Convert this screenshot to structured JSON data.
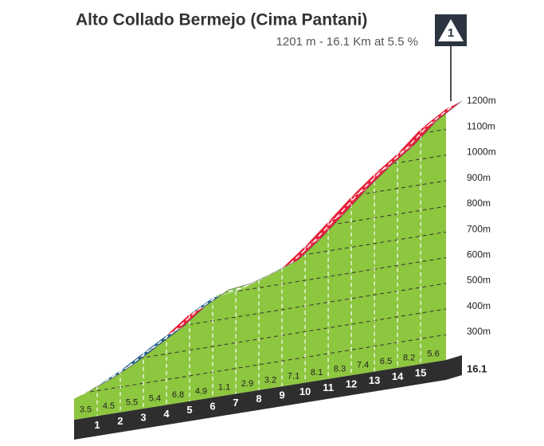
{
  "title": "Alto Collado Bermejo (Cima Pantani)",
  "subtitle": "1201 m - 16.1 Km at 5.5 %",
  "category": "1",
  "chart_data": {
    "type": "climb-profile",
    "x": [
      0,
      1,
      2,
      3,
      4,
      5,
      6,
      7,
      8,
      9,
      10,
      11,
      12,
      13,
      14,
      15,
      16.1
    ],
    "elevations": [
      305,
      340,
      385,
      440,
      494,
      562,
      611,
      622,
      651,
      683,
      754,
      835,
      918,
      992,
      1057,
      1139,
      1201
    ],
    "gradients": [
      3.5,
      4.5,
      5.5,
      5.4,
      6.8,
      4.9,
      1.1,
      2.9,
      3.2,
      7.1,
      8.1,
      8.3,
      7.4,
      6.5,
      8.2,
      5.6
    ],
    "gradient_colors": [
      "#7cc242",
      "#1f5f8b",
      "#1f5f8b",
      "#1f5f8b",
      "#e8203a",
      "#1f5f8b",
      "#7cc242",
      "#7cc242",
      "#7cc242",
      "#e8203a",
      "#e8203a",
      "#e8203a",
      "#e8203a",
      "#e8203a",
      "#e8203a",
      "#e8203a"
    ],
    "terrain_color": "#8dc63f",
    "xlim": [
      0,
      16.1
    ],
    "xticks": [
      1,
      2,
      3,
      4,
      5,
      6,
      7,
      8,
      9,
      10,
      11,
      12,
      13,
      14,
      15,
      16.1
    ],
    "ylim": [
      300,
      1200
    ],
    "yticks": [
      {
        "value": 1200,
        "label": "1200m"
      },
      {
        "value": 1100,
        "label": "1100m"
      },
      {
        "value": 1000,
        "label": "1000m"
      },
      {
        "value": 900,
        "label": "900m"
      },
      {
        "value": 800,
        "label": "800m"
      },
      {
        "value": 700,
        "label": "700m"
      },
      {
        "value": 600,
        "label": "600m"
      },
      {
        "value": 500,
        "label": "500m"
      },
      {
        "value": 400,
        "label": "400m"
      },
      {
        "value": 300,
        "label": "300m"
      }
    ],
    "grid": true
  }
}
